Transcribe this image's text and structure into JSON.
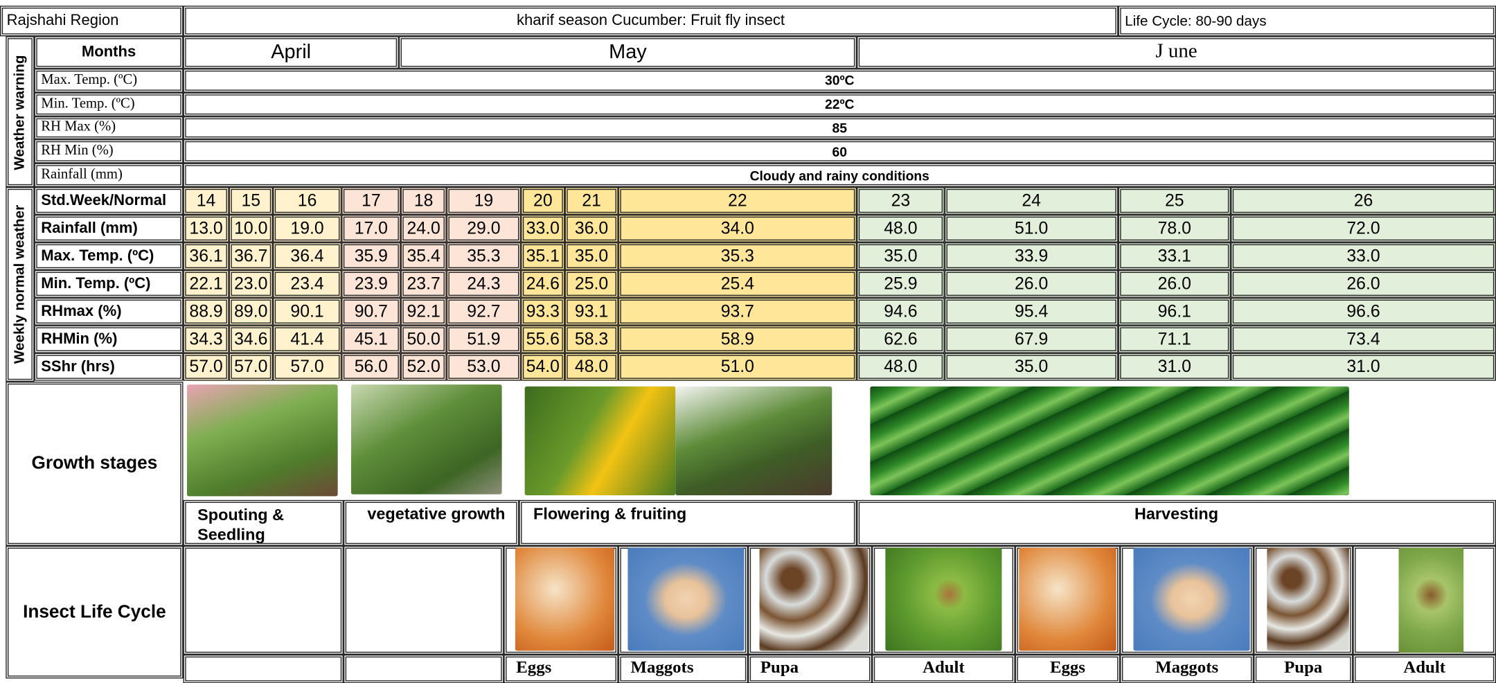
{
  "header": {
    "region": "Rajshahi Region",
    "title": "kharif season Cucumber: Fruit fly insect",
    "life_cycle": "Life Cycle: 80-90 days"
  },
  "months": {
    "label": "Months",
    "names": [
      "April",
      "May",
      "J une"
    ]
  },
  "weather_warning": {
    "label": "Weather warning",
    "rows": [
      {
        "label": "Max. Temp. (ºC)",
        "value": "30ºC"
      },
      {
        "label": "Min. Temp. (ºC)",
        "value": "22ºC"
      },
      {
        "label": "RH Max (%)",
        "value": "85"
      },
      {
        "label": "RH Min (%)",
        "value": "60"
      },
      {
        "label": "Rainfall (mm)",
        "value": "Cloudy and rainy conditions"
      }
    ]
  },
  "weekly_normal": {
    "label": "Weekly normal weather",
    "week_label": "Std.Week/Normal",
    "weeks": [
      "14",
      "15",
      "16",
      "17",
      "18",
      "19",
      "20",
      "21",
      "22",
      "23",
      "24",
      "25",
      "26"
    ],
    "rows": [
      {
        "label": "Rainfall (mm)",
        "values": [
          "13.0",
          "10.0",
          "19.0",
          "17.0",
          "24.0",
          "29.0",
          "33.0",
          "36.0",
          "34.0",
          "48.0",
          "51.0",
          "78.0",
          "72.0"
        ]
      },
      {
        "label": "Max. Temp. (ºC)",
        "values": [
          "36.1",
          "36.7",
          "36.4",
          "35.9",
          "35.4",
          "35.3",
          "35.1",
          "35.0",
          "35.3",
          "35.0",
          "33.9",
          "33.1",
          "33.0"
        ]
      },
      {
        "label": "Min. Temp. (ºC)",
        "values": [
          "22.1",
          "23.0",
          "23.4",
          "23.9",
          "23.7",
          "24.3",
          "24.6",
          "25.0",
          "25.4",
          "25.9",
          "26.0",
          "26.0",
          "26.0"
        ]
      },
      {
        "label": "RHmax (%)",
        "values": [
          "88.9",
          "89.0",
          "90.1",
          "90.7",
          "92.1",
          "92.7",
          "93.3",
          "93.1",
          "93.7",
          "94.6",
          "95.4",
          "96.1",
          "96.6"
        ]
      },
      {
        "label": "RHMin (%)",
        "values": [
          "34.3",
          "34.6",
          "41.4",
          "45.1",
          "50.0",
          "51.9",
          "55.6",
          "58.3",
          "58.9",
          "62.6",
          "67.9",
          "71.1",
          "73.4"
        ]
      },
      {
        "label": "SShr (hrs)",
        "values": [
          "57.0",
          "57.0",
          "57.0",
          "56.0",
          "52.0",
          "53.0",
          "54.0",
          "48.0",
          "51.0",
          "48.0",
          "35.0",
          "31.0",
          "31.0"
        ]
      }
    ]
  },
  "growth_stages": {
    "label": "Growth stages",
    "stages": [
      "Spouting & Seedling",
      "vegetative growth",
      "Flowering & fruiting",
      "Harvesting"
    ]
  },
  "insect_life_cycle": {
    "label": "Insect Life Cycle",
    "stages": [
      "Eggs",
      "Maggots",
      "Pupa",
      "Adult",
      "Eggs",
      "Maggots",
      "Pupa",
      "Adult"
    ]
  }
}
